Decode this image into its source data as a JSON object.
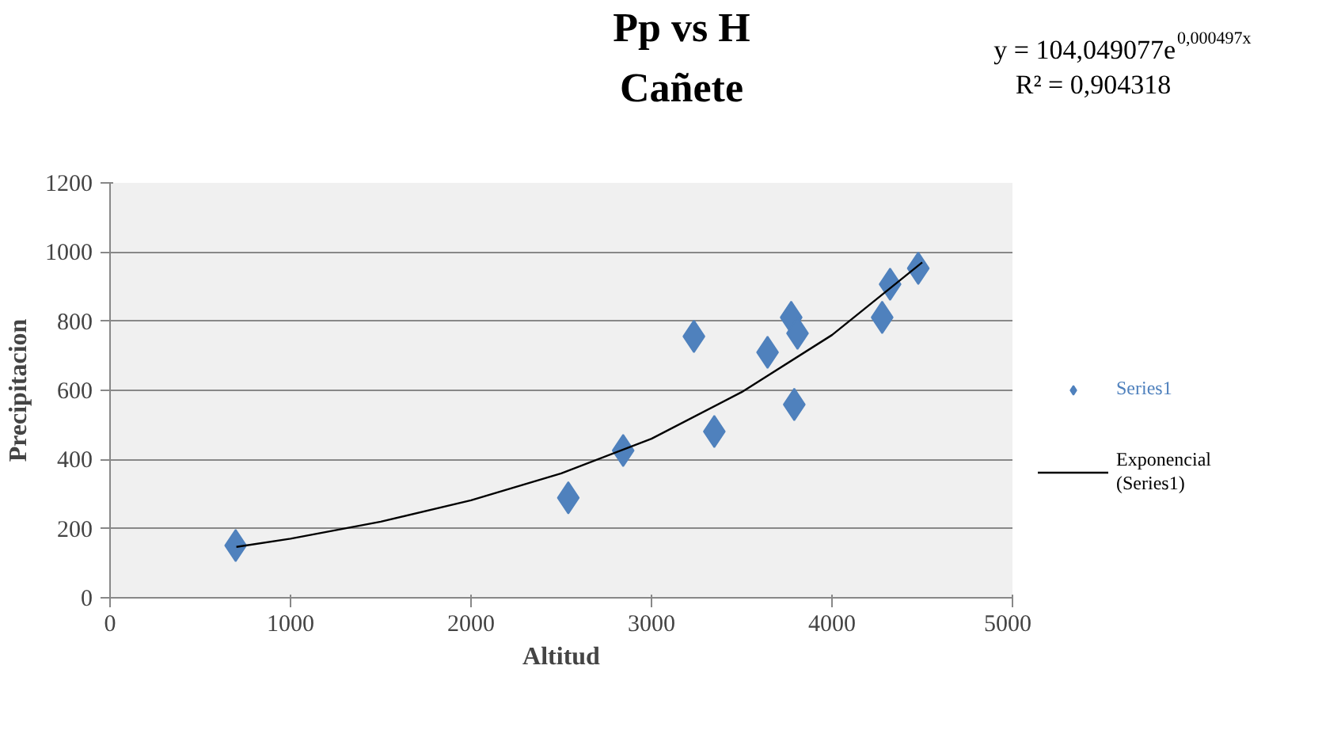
{
  "chart_data": {
    "type": "scatter",
    "title": "Pp vs H",
    "subtitle": "Cañete",
    "xlabel": "Altitud",
    "ylabel": "Precipitacion",
    "annotations": [
      "y = 104,049077e$^{0,000497x}$",
      "R² = 0,904318"
    ],
    "xlim": [
      0,
      5000
    ],
    "xticks": [
      0,
      1000,
      2000,
      3000,
      4000,
      5000
    ],
    "ylim": [
      0,
      1200
    ],
    "yticks": [
      0,
      200,
      400,
      600,
      800,
      1000,
      1200
    ],
    "grid": "y",
    "legend": "right",
    "marker": "diamond",
    "series": [
      {
        "name": "Series1",
        "color": "#4f81bd",
        "type": "scatter",
        "x": [
          696,
          2539,
          2843,
          3235,
          3348,
          3643,
          3774,
          3809,
          3791,
          4278,
          4322,
          4478
        ],
        "values": [
          151,
          289,
          426,
          756,
          481,
          710,
          811,
          765,
          559,
          811,
          907,
          953
        ]
      },
      {
        "name": "Exponencial (Series1)",
        "color": "#000000",
        "type": "line",
        "marker": "none",
        "x": [
          700,
          1000,
          1500,
          2000,
          2500,
          3000,
          3500,
          4000,
          4500
        ],
        "values": [
          147,
          171,
          220,
          282,
          360,
          460,
          595,
          760,
          970
        ]
      }
    ]
  }
}
